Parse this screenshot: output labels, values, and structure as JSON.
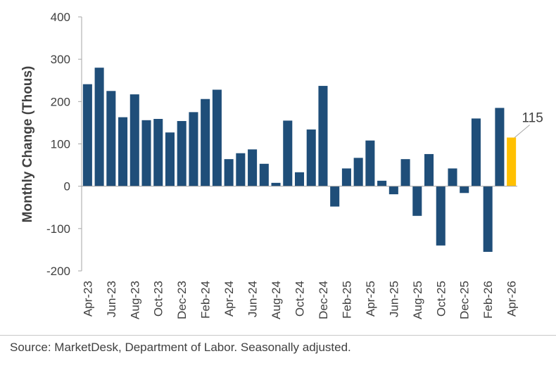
{
  "chart_data": {
    "type": "bar",
    "title": "",
    "xlabel": "",
    "ylabel": "Monthly Change (Thous)",
    "ylim": [
      -200,
      400
    ],
    "yticks": [
      "400",
      "300",
      "200",
      "100",
      "0",
      "-100",
      "-200"
    ],
    "ytick_values": [
      400,
      300,
      200,
      100,
      0,
      -100,
      -200
    ],
    "categories": [
      "Apr-23",
      "May-23",
      "Jun-23",
      "Jul-23",
      "Aug-23",
      "Sep-23",
      "Oct-23",
      "Nov-23",
      "Dec-23",
      "Jan-24",
      "Feb-24",
      "Mar-24",
      "Apr-24",
      "May-24",
      "Jun-24",
      "Jul-24",
      "Aug-24",
      "Sep-24",
      "Oct-24",
      "Nov-24",
      "Dec-24",
      "Jan-25",
      "Feb-25",
      "Mar-25",
      "Apr-25",
      "May-25",
      "Jun-25",
      "Jul-25",
      "Aug-25",
      "Sep-25",
      "Oct-25",
      "Nov-25",
      "Dec-25",
      "Jan-26",
      "Feb-26",
      "Mar-26",
      "Apr-26"
    ],
    "xtick_labels": [
      "Apr-23",
      "Jun-23",
      "Aug-23",
      "Oct-23",
      "Dec-23",
      "Feb-24",
      "Apr-24",
      "Jun-24",
      "Aug-24",
      "Oct-24",
      "Dec-24",
      "Feb-25",
      "Apr-25",
      "Jun-25",
      "Aug-25",
      "Oct-25",
      "Dec-25",
      "Feb-26",
      "Apr-26"
    ],
    "values": [
      241,
      280,
      225,
      163,
      217,
      156,
      159,
      127,
      154,
      175,
      206,
      228,
      64,
      78,
      87,
      53,
      8,
      155,
      33,
      134,
      237,
      -48,
      42,
      67,
      108,
      13,
      -19,
      64,
      -70,
      76,
      -140,
      42,
      -16,
      160,
      -155,
      185,
      115
    ],
    "highlight_index": 36,
    "annotation": "115",
    "colors": {
      "bar": "#1f4e79",
      "highlight": "#ffc000",
      "axis": "#a6a6a6",
      "text": "#404040"
    },
    "grid": false,
    "legend": "none"
  },
  "footer": {
    "source": "Source: MarketDesk, Department of Labor. Seasonally adjusted."
  }
}
